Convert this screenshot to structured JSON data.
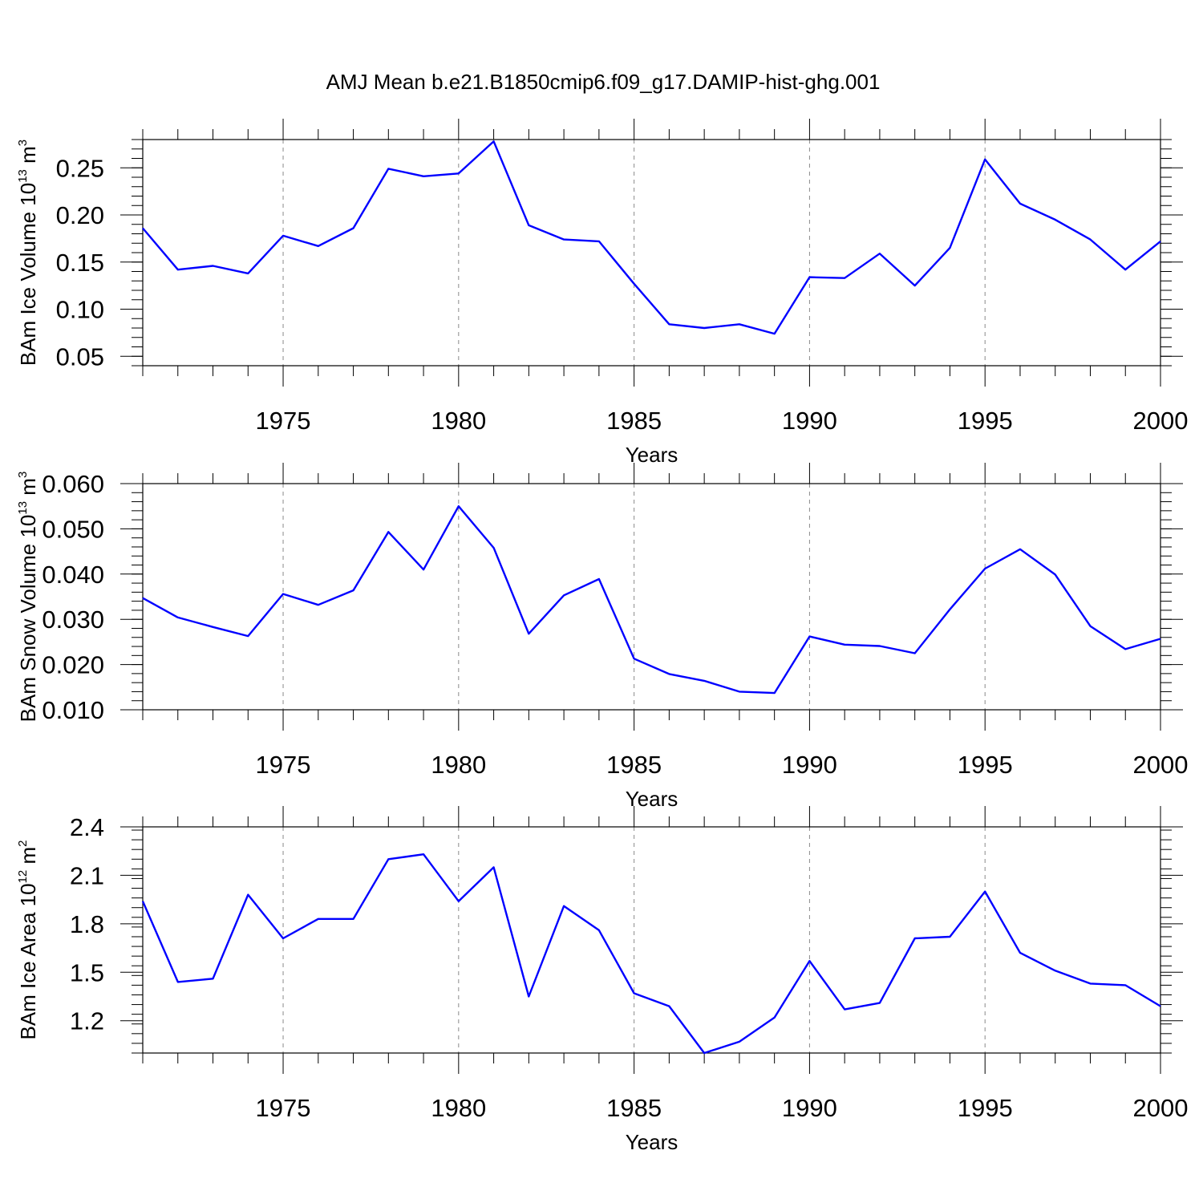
{
  "title": "AMJ Mean b.e21.B1850cmip6.f09_g17.DAMIP-hist-ghg.001",
  "chart_data": [
    {
      "type": "line",
      "ylabel": "BAm Ice Volume 10",
      "ylabel_exp": "13",
      "ylabel_unit": " m",
      "ylabel_unit_exp": "3",
      "xlabel": "Years",
      "xlim": [
        1971,
        2000
      ],
      "ylim": [
        0.04,
        0.28
      ],
      "y_ticks": [
        "0.05",
        "0.10",
        "0.15",
        "0.20",
        "0.25"
      ],
      "y_tick_values": [
        0.05,
        0.1,
        0.15,
        0.2,
        0.25
      ],
      "x_ticks": [
        "1975",
        "1980",
        "1985",
        "1990",
        "1995",
        "2000"
      ],
      "x_tick_values": [
        1975,
        1980,
        1985,
        1990,
        1995,
        2000
      ],
      "grid": "vertical dashed at major x ticks",
      "color": "#0000ff",
      "x": [
        1971,
        1972,
        1973,
        1974,
        1975,
        1976,
        1977,
        1978,
        1979,
        1980,
        1981,
        1982,
        1983,
        1984,
        1985,
        1986,
        1987,
        1988,
        1989,
        1990,
        1991,
        1992,
        1993,
        1994,
        1995,
        1996,
        1997,
        1998,
        1999,
        2000
      ],
      "y": [
        0.186,
        0.142,
        0.146,
        0.138,
        0.178,
        0.167,
        0.186,
        0.249,
        0.241,
        0.244,
        0.278,
        0.189,
        0.174,
        0.172,
        0.127,
        0.084,
        0.08,
        0.084,
        0.074,
        0.134,
        0.133,
        0.159,
        0.125,
        0.165,
        0.259,
        0.212,
        0.195,
        0.174,
        0.142,
        0.172
      ]
    },
    {
      "type": "line",
      "ylabel": "BAm Snow Volume 10",
      "ylabel_exp": "13",
      "ylabel_unit": " m",
      "ylabel_unit_exp": "3",
      "xlabel": "Years",
      "xlim": [
        1971,
        2000
      ],
      "ylim": [
        0.01,
        0.06
      ],
      "y_ticks": [
        "0.010",
        "0.020",
        "0.030",
        "0.040",
        "0.050",
        "0.060"
      ],
      "y_tick_values": [
        0.01,
        0.02,
        0.03,
        0.04,
        0.05,
        0.06
      ],
      "x_ticks": [
        "1975",
        "1980",
        "1985",
        "1990",
        "1995",
        "2000"
      ],
      "x_tick_values": [
        1975,
        1980,
        1985,
        1990,
        1995,
        2000
      ],
      "grid": "vertical dashed at major x ticks",
      "color": "#0000ff",
      "x": [
        1971,
        1972,
        1973,
        1974,
        1975,
        1976,
        1977,
        1978,
        1979,
        1980,
        1981,
        1982,
        1983,
        1984,
        1985,
        1986,
        1987,
        1988,
        1989,
        1990,
        1991,
        1992,
        1993,
        1994,
        1995,
        1996,
        1997,
        1998,
        1999,
        2000
      ],
      "y": [
        0.0347,
        0.0304,
        0.0283,
        0.0263,
        0.0356,
        0.0332,
        0.0364,
        0.0493,
        0.041,
        0.055,
        0.0458,
        0.0268,
        0.0353,
        0.0389,
        0.0213,
        0.0179,
        0.0164,
        0.014,
        0.0137,
        0.0262,
        0.0244,
        0.0241,
        0.0225,
        0.0322,
        0.0412,
        0.0455,
        0.0399,
        0.0285,
        0.0234,
        0.0257
      ]
    },
    {
      "type": "line",
      "ylabel": "BAm Ice Area 10",
      "ylabel_exp": "12",
      "ylabel_unit": " m",
      "ylabel_unit_exp": "2",
      "xlabel": "Years",
      "xlim": [
        1971,
        2000
      ],
      "ylim": [
        1.0,
        2.4
      ],
      "y_ticks": [
        "1.2",
        "1.5",
        "1.8",
        "2.1",
        "2.4"
      ],
      "y_tick_values": [
        1.2,
        1.5,
        1.8,
        2.1,
        2.4
      ],
      "x_ticks": [
        "1975",
        "1980",
        "1985",
        "1990",
        "1995",
        "2000"
      ],
      "x_tick_values": [
        1975,
        1980,
        1985,
        1990,
        1995,
        2000
      ],
      "grid": "vertical dashed at major x ticks",
      "color": "#0000ff",
      "x": [
        1971,
        1972,
        1973,
        1974,
        1975,
        1976,
        1977,
        1978,
        1979,
        1980,
        1981,
        1982,
        1983,
        1984,
        1985,
        1986,
        1987,
        1988,
        1989,
        1990,
        1991,
        1992,
        1993,
        1994,
        1995,
        1996,
        1997,
        1998,
        1999,
        2000
      ],
      "y": [
        1.94,
        1.44,
        1.46,
        1.98,
        1.71,
        1.83,
        1.83,
        2.2,
        2.23,
        1.94,
        2.15,
        1.35,
        1.91,
        1.76,
        1.37,
        1.29,
        1.0,
        1.07,
        1.22,
        1.57,
        1.27,
        1.31,
        1.71,
        1.72,
        2.0,
        1.62,
        1.51,
        1.43,
        1.42,
        1.29
      ]
    }
  ]
}
